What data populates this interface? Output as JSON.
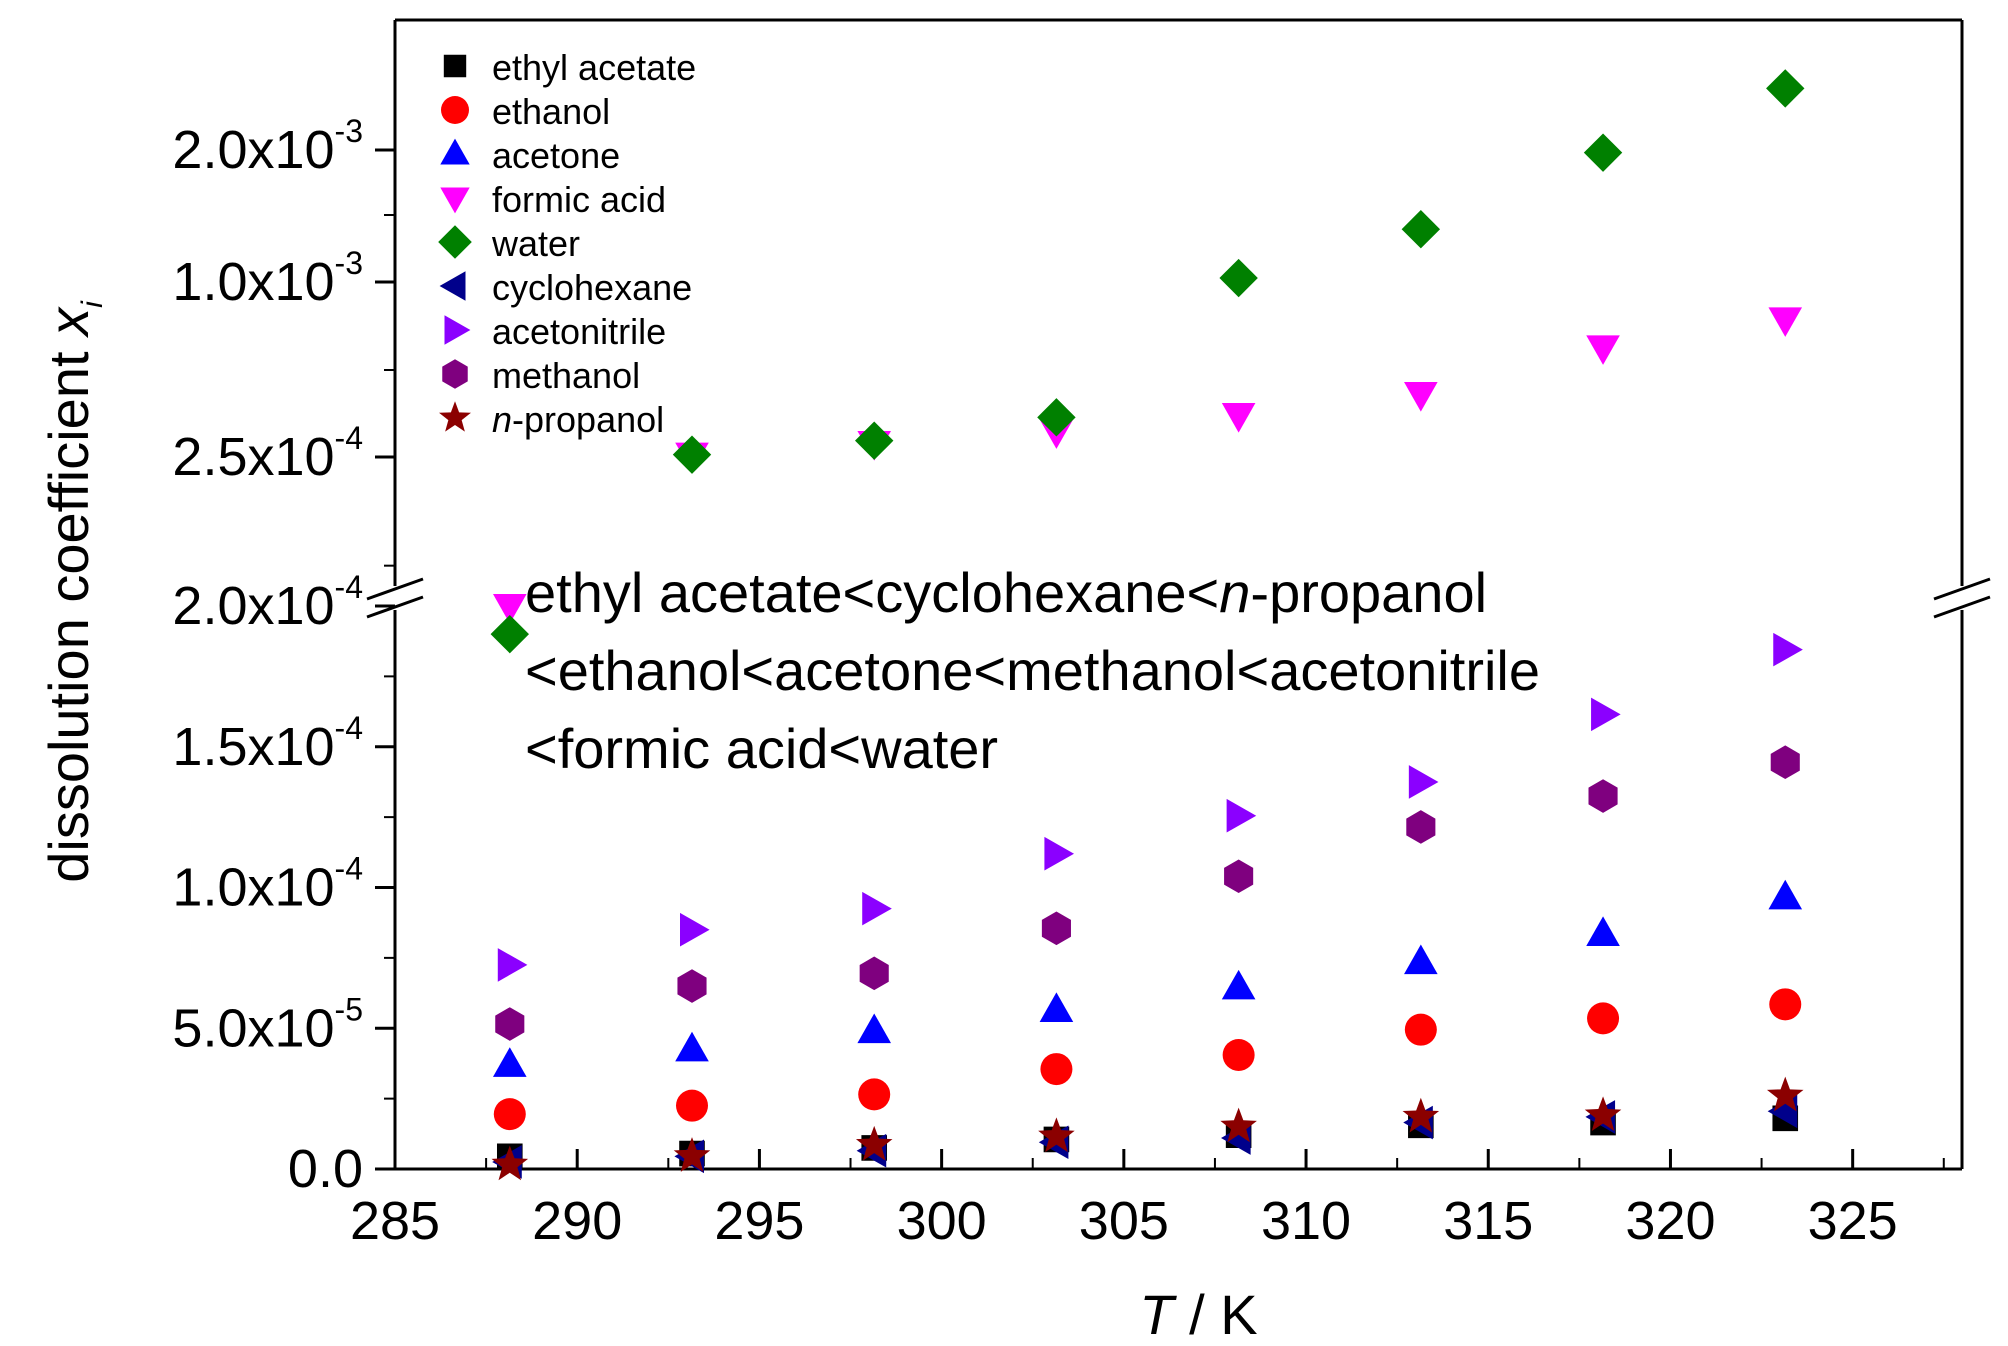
{
  "chart_data": {
    "type": "scatter",
    "xlabel": {
      "italic": "T",
      "rest": " / K"
    },
    "ylabel": {
      "main": "dissolution coefficient ",
      "italic": "x",
      "sub": "i"
    },
    "xlim": [
      285,
      328
    ],
    "x_ticks": [
      {
        "value": 285,
        "label": "285"
      },
      {
        "value": 290,
        "label": "290"
      },
      {
        "value": 295,
        "label": "295"
      },
      {
        "value": 300,
        "label": "300"
      },
      {
        "value": 305,
        "label": "305"
      },
      {
        "value": 310,
        "label": "310"
      },
      {
        "value": 315,
        "label": "315"
      },
      {
        "value": 320,
        "label": "320"
      },
      {
        "value": 325,
        "label": "325"
      }
    ],
    "y_axis_break": true,
    "y_segments": {
      "lower": {
        "range": [
          0,
          0.0002
        ]
      },
      "upper": {
        "range": [
          0.00019,
          0.0025
        ]
      }
    },
    "y_tick_labels": [
      {
        "mant": "0.0",
        "exp": "",
        "segment": "lower",
        "value": 0
      },
      {
        "mant": "5.0x10",
        "exp": "-5",
        "segment": "lower",
        "value": 5e-05
      },
      {
        "mant": "1.0x10",
        "exp": "-4",
        "segment": "lower",
        "value": 0.0001
      },
      {
        "mant": "1.5x10",
        "exp": "-4",
        "segment": "lower",
        "value": 0.00015
      },
      {
        "mant": "2.0x10",
        "exp": "-4",
        "segment": "lower",
        "value": 0.0002
      },
      {
        "mant": "2.5x10",
        "exp": "-4",
        "segment": "upper",
        "value": 0.00025
      },
      {
        "mant": "1.0x10",
        "exp": "-3",
        "segment": "upper",
        "value": 0.001
      },
      {
        "mant": "2.0x10",
        "exp": "-3",
        "segment": "upper",
        "value": 0.002
      }
    ],
    "x": [
      288.15,
      293.15,
      298.15,
      303.15,
      308.15,
      313.15,
      318.15,
      323.15
    ],
    "series": [
      {
        "name": "ethyl acetate",
        "marker": "square",
        "color": "#000000",
        "values": [
          4.5e-06,
          5.5e-06,
          7.5e-06,
          1.05e-05,
          1.2e-05,
          1.55e-05,
          1.65e-05,
          1.8e-05
        ]
      },
      {
        "name": "ethanol",
        "marker": "circle",
        "color": "#ff0000",
        "values": [
          1.95e-05,
          2.25e-05,
          2.65e-05,
          3.55e-05,
          4.05e-05,
          4.95e-05,
          5.35e-05,
          5.85e-05
        ]
      },
      {
        "name": "acetone",
        "marker": "triangle-up",
        "color": "#0000ff",
        "values": [
          3.7e-05,
          4.25e-05,
          4.9e-05,
          5.65e-05,
          6.45e-05,
          7.35e-05,
          8.35e-05,
          9.65e-05
        ]
      },
      {
        "name": "formic acid",
        "marker": "triangle-down",
        "color": "#ff00ff",
        "values": [
          0.0002,
          0.00026,
          0.00031,
          0.00036,
          0.00043,
          0.00052,
          0.00072,
          0.00084
        ]
      },
      {
        "name": "water",
        "marker": "diamond",
        "color": "#008000",
        "values": [
          0.00019,
          0.00026,
          0.00032,
          0.00042,
          0.00103,
          0.0014,
          0.00198,
          0.00235
        ]
      },
      {
        "name": "cyclohexane",
        "marker": "triangle-left",
        "color": "#00008b",
        "values": [
          2.5e-06,
          4.5e-06,
          6.5e-06,
          9.5e-06,
          1.1e-05,
          1.65e-05,
          1.85e-05,
          2.05e-05
        ]
      },
      {
        "name": "acetonitrile",
        "marker": "triangle-right",
        "color": "#8b00ff",
        "values": [
          7.25e-05,
          8.5e-05,
          9.25e-05,
          0.000112,
          0.0001255,
          0.0001375,
          0.0001615,
          0.0001845
        ]
      },
      {
        "name": "methanol",
        "marker": "hexagon",
        "color": "#7f007f",
        "values": [
          5.15e-05,
          6.5e-05,
          6.95e-05,
          8.55e-05,
          0.000104,
          0.0001215,
          0.0001325,
          0.0001445
        ]
      },
      {
        "name": "n-propanol",
        "label_italic": "n",
        "label_rest": "-propanol",
        "marker": "star",
        "color": "#8b0000",
        "values": [
          1.5e-06,
          4.5e-06,
          8.5e-06,
          1.15e-05,
          1.5e-05,
          1.85e-05,
          1.9e-05,
          2.6e-05
        ]
      }
    ],
    "legend_position": "top-left",
    "annotation_lines": [
      {
        "segments": [
          {
            "text": "ethyl acetate<cyclohexane<",
            "italic": false
          },
          {
            "text": "n",
            "italic": true
          },
          {
            "text": "-propanol",
            "italic": false
          }
        ]
      },
      {
        "segments": [
          {
            "text": "<ethanol<acetone<methanol<acetonitrile",
            "italic": false
          }
        ]
      },
      {
        "segments": [
          {
            "text": "<formic acid<water",
            "italic": false
          }
        ]
      }
    ]
  }
}
